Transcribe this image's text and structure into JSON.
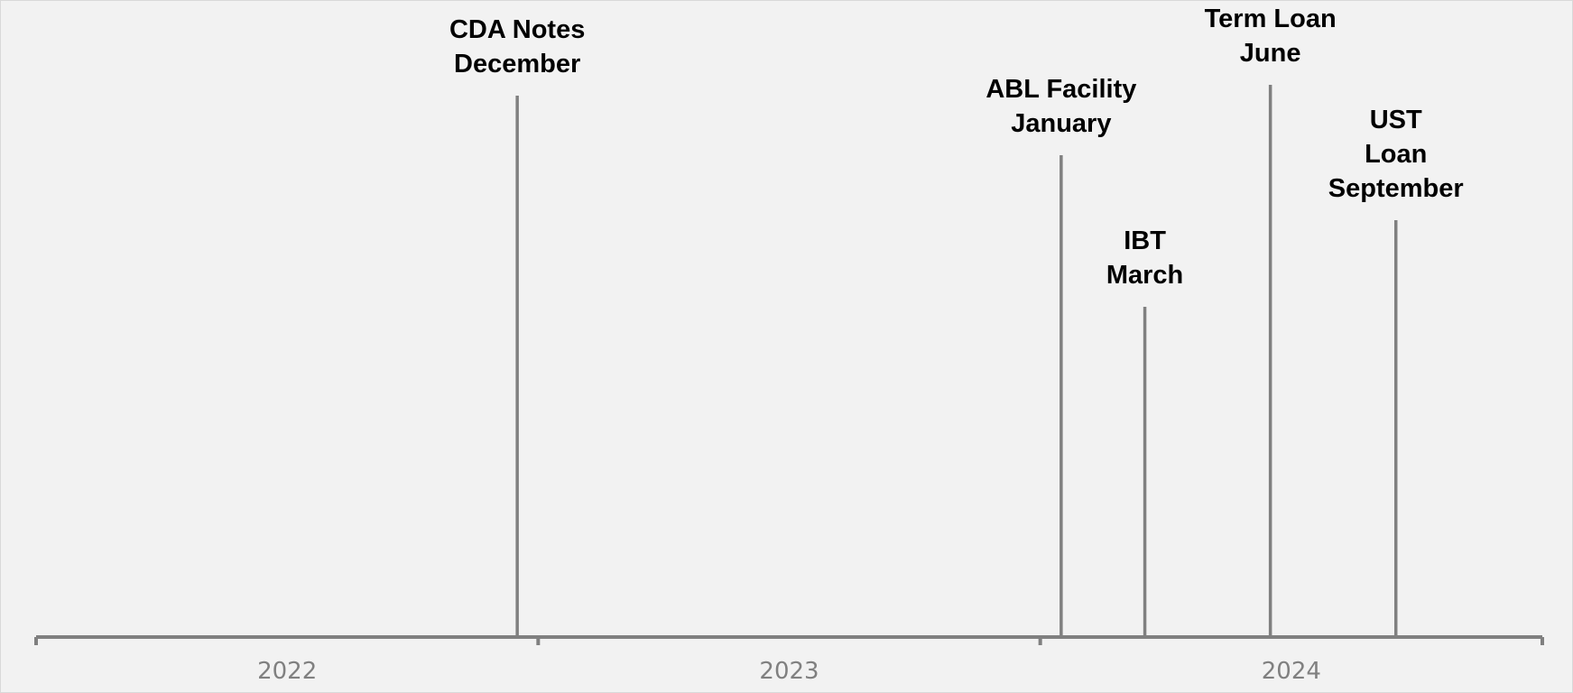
{
  "colors": {
    "background": "#f2f2f2",
    "frame": "#d9d9d9",
    "axis": "#808080",
    "event_line": "#808080",
    "event_text": "#000000",
    "year_text": "#808080"
  },
  "chart_data": {
    "type": "timeline",
    "title": "",
    "xlabel": "",
    "ylabel": "",
    "grid": false,
    "legend": "none",
    "x_range": [
      "2022-01",
      "2024-12"
    ],
    "years": [
      "2022",
      "2023",
      "2024"
    ],
    "events": [
      {
        "name": "CDA Notes",
        "month": "December",
        "date": "2022-12",
        "lines": [
          "CDA Notes",
          "December"
        ],
        "line_height": 1.0
      },
      {
        "name": "ABL Facility",
        "month": "January",
        "date": "2024-01",
        "lines": [
          "ABL Facility",
          "January"
        ],
        "line_height": 0.89
      },
      {
        "name": "IBT",
        "month": "March",
        "date": "2024-03",
        "lines": [
          "IBT",
          "March"
        ],
        "line_height": 0.61
      },
      {
        "name": "Term Loan",
        "month": "June",
        "date": "2024-06",
        "lines": [
          "Term Loan",
          "June"
        ],
        "line_height": 1.02
      },
      {
        "name": "UST Loan",
        "month": "September",
        "date": "2024-09",
        "lines": [
          "UST",
          "Loan",
          "September"
        ],
        "line_height": 0.77
      }
    ]
  }
}
